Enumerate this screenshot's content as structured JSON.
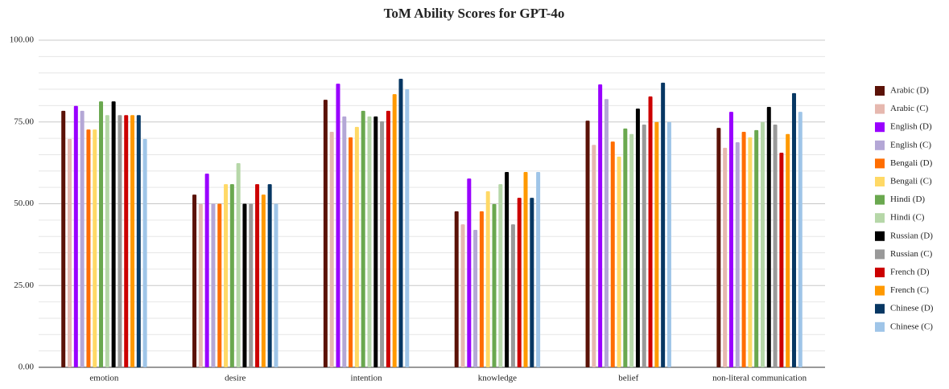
{
  "chart_data": {
    "type": "bar",
    "title": "ToM Ability Scores for GPT-4o",
    "categories": [
      "emotion",
      "desire",
      "intention",
      "knowledge",
      "belief",
      "non-literal communication"
    ],
    "series": [
      {
        "name": "Arabic (D)",
        "color": "#5b1207",
        "values": [
          78.4,
          52.8,
          81.8,
          47.7,
          75.4,
          73.2
        ]
      },
      {
        "name": "Arabic (C)",
        "color": "#e6b8af",
        "values": [
          69.8,
          49.9,
          72.0,
          43.7,
          68.0,
          67.1
        ]
      },
      {
        "name": "English (D)",
        "color": "#9900ff",
        "values": [
          79.9,
          59.2,
          86.7,
          57.7,
          86.5,
          78.1
        ]
      },
      {
        "name": "English (C)",
        "color": "#b4a7d6",
        "values": [
          78.4,
          50.0,
          76.7,
          42.0,
          82.0,
          68.8
        ]
      },
      {
        "name": "Bengali (D)",
        "color": "#ff6d01",
        "values": [
          72.7,
          50.0,
          70.3,
          47.7,
          69.0,
          72.0
        ]
      },
      {
        "name": "Bengali (C)",
        "color": "#ffd966",
        "values": [
          72.7,
          56.0,
          73.5,
          53.8,
          64.4,
          70.3
        ]
      },
      {
        "name": "Hindi (D)",
        "color": "#6aa84f",
        "values": [
          81.3,
          56.0,
          78.4,
          49.9,
          73.0,
          72.5
        ]
      },
      {
        "name": "Hindi (C)",
        "color": "#b6d7a8",
        "values": [
          77.1,
          62.4,
          76.7,
          56.0,
          71.3,
          75.0
        ]
      },
      {
        "name": "Russian (D)",
        "color": "#000000",
        "values": [
          81.3,
          50.0,
          76.7,
          59.7,
          79.1,
          79.6
        ]
      },
      {
        "name": "Russian (C)",
        "color": "#999999",
        "values": [
          77.1,
          50.0,
          75.2,
          43.7,
          74.2,
          74.2
        ]
      },
      {
        "name": "French (D)",
        "color": "#cc0000",
        "values": [
          77.1,
          56.0,
          78.4,
          51.8,
          82.8,
          65.6
        ]
      },
      {
        "name": "French (C)",
        "color": "#ff9900",
        "values": [
          77.1,
          52.8,
          83.5,
          59.7,
          75.0,
          71.3
        ]
      },
      {
        "name": "Chinese (D)",
        "color": "#073763",
        "values": [
          77.1,
          56.0,
          88.2,
          51.8,
          87.0,
          83.8
        ]
      },
      {
        "name": "Chinese (C)",
        "color": "#9fc5e8",
        "values": [
          69.8,
          50.0,
          85.0,
          59.7,
          75.0,
          78.1
        ]
      }
    ],
    "ylim": [
      0,
      100
    ],
    "yticks": [
      {
        "value": 0,
        "label": "0.00"
      },
      {
        "value": 25,
        "label": "25.00"
      },
      {
        "value": 50,
        "label": "50.00"
      },
      {
        "value": 75,
        "label": "75.00"
      },
      {
        "value": 100,
        "label": "100.00"
      }
    ],
    "yminor_ticks": [
      5,
      10,
      15,
      20,
      30,
      35,
      40,
      45,
      55,
      60,
      65,
      70,
      80,
      85,
      90,
      95
    ],
    "grid": true,
    "legend": "right"
  }
}
